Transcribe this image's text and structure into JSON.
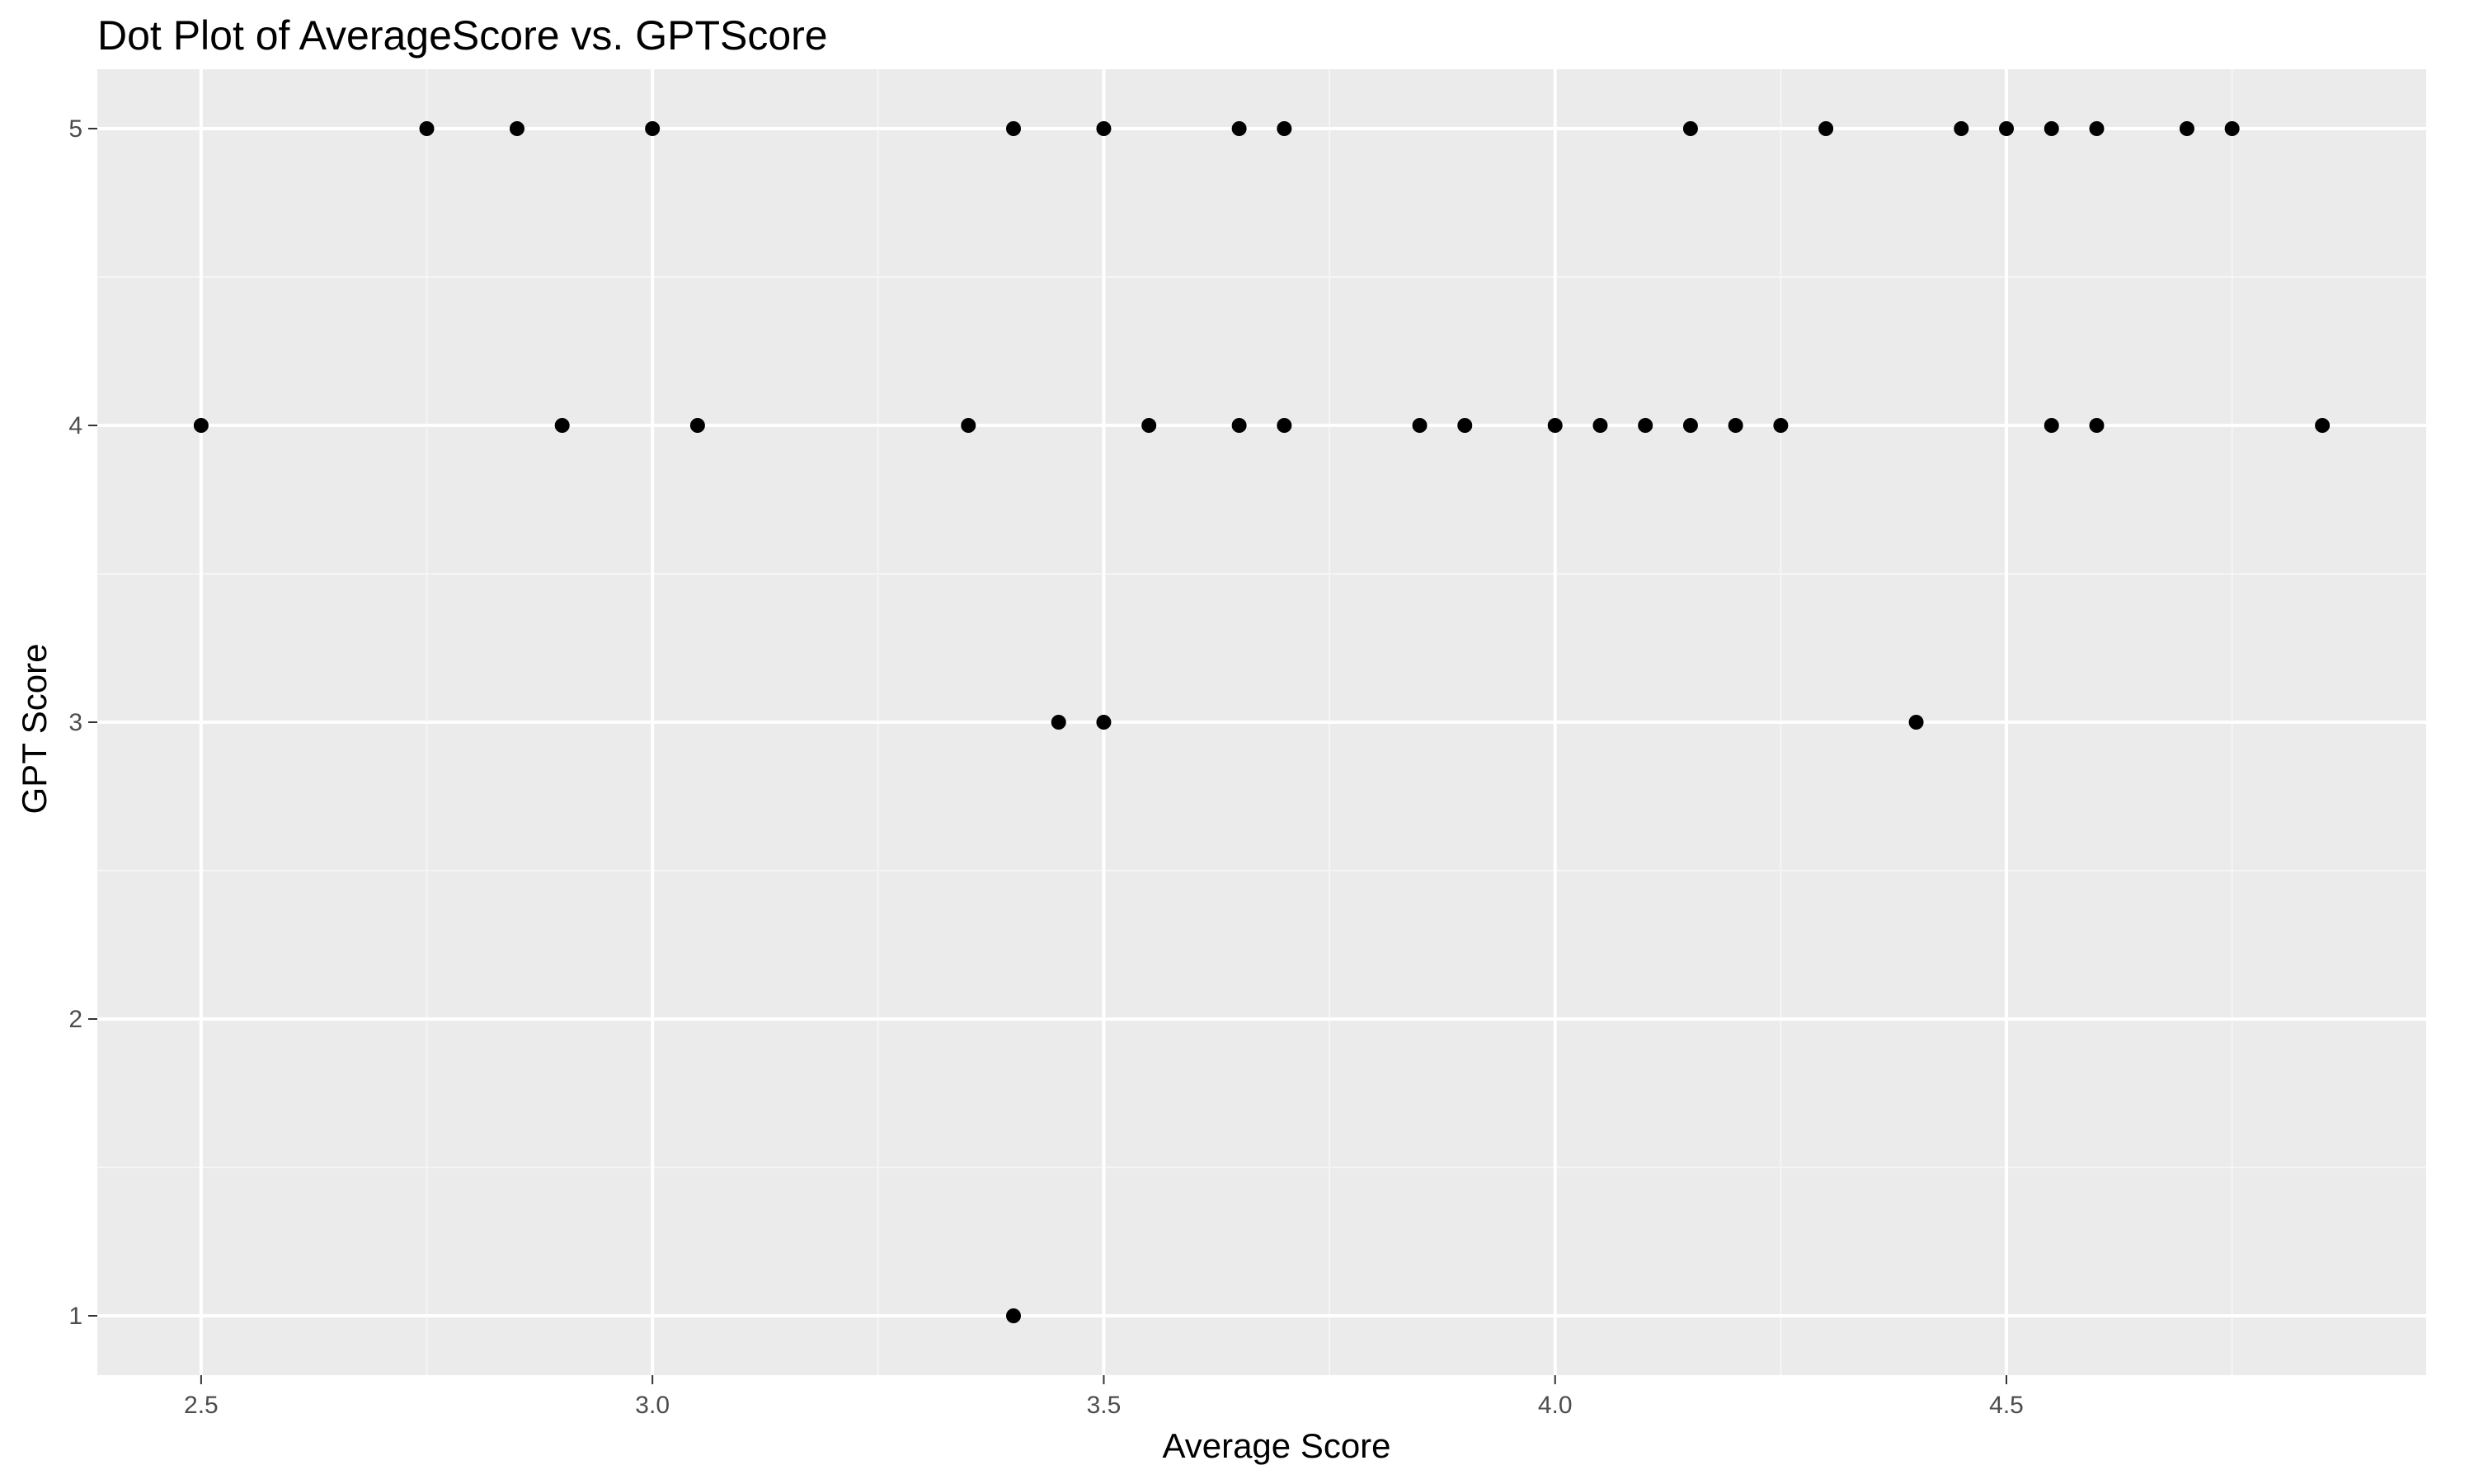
{
  "chart_data": {
    "type": "scatter",
    "title": "Dot Plot of AverageScore vs. GPTScore",
    "xlabel": "Average Score",
    "ylabel": "GPT Score",
    "xlim": [
      2.385,
      4.965
    ],
    "ylim": [
      0.8,
      5.2
    ],
    "x_ticks": [
      2.5,
      3.0,
      3.5,
      4.0,
      4.5
    ],
    "x_tick_labels": [
      "2.5",
      "3.0",
      "3.5",
      "4.0",
      "4.5"
    ],
    "y_ticks": [
      1,
      2,
      3,
      4,
      5
    ],
    "y_tick_labels": [
      "1",
      "2",
      "3",
      "4",
      "5"
    ],
    "grid": true,
    "legend": "none",
    "colors": {
      "panel_background": "#ebebeb",
      "grid_major": "#ffffff",
      "grid_minor": "#f5f5f5",
      "point": "#000000",
      "tick": "#333333"
    },
    "points": [
      {
        "x": 2.75,
        "y": 5
      },
      {
        "x": 2.85,
        "y": 5
      },
      {
        "x": 3.0,
        "y": 5
      },
      {
        "x": 3.4,
        "y": 5
      },
      {
        "x": 3.5,
        "y": 5
      },
      {
        "x": 3.65,
        "y": 5
      },
      {
        "x": 3.7,
        "y": 5
      },
      {
        "x": 4.15,
        "y": 5
      },
      {
        "x": 4.3,
        "y": 5
      },
      {
        "x": 4.45,
        "y": 5
      },
      {
        "x": 4.5,
        "y": 5
      },
      {
        "x": 4.55,
        "y": 5
      },
      {
        "x": 4.6,
        "y": 5
      },
      {
        "x": 4.7,
        "y": 5
      },
      {
        "x": 4.75,
        "y": 5
      },
      {
        "x": 2.5,
        "y": 4
      },
      {
        "x": 2.9,
        "y": 4
      },
      {
        "x": 3.05,
        "y": 4
      },
      {
        "x": 3.35,
        "y": 4
      },
      {
        "x": 3.55,
        "y": 4
      },
      {
        "x": 3.65,
        "y": 4
      },
      {
        "x": 3.7,
        "y": 4
      },
      {
        "x": 3.85,
        "y": 4
      },
      {
        "x": 3.9,
        "y": 4
      },
      {
        "x": 4.0,
        "y": 4
      },
      {
        "x": 4.05,
        "y": 4
      },
      {
        "x": 4.1,
        "y": 4
      },
      {
        "x": 4.15,
        "y": 4
      },
      {
        "x": 4.2,
        "y": 4
      },
      {
        "x": 4.25,
        "y": 4
      },
      {
        "x": 4.55,
        "y": 4
      },
      {
        "x": 4.6,
        "y": 4
      },
      {
        "x": 4.85,
        "y": 4
      },
      {
        "x": 3.45,
        "y": 3
      },
      {
        "x": 3.5,
        "y": 3
      },
      {
        "x": 4.4,
        "y": 3
      },
      {
        "x": 3.4,
        "y": 1
      }
    ]
  }
}
